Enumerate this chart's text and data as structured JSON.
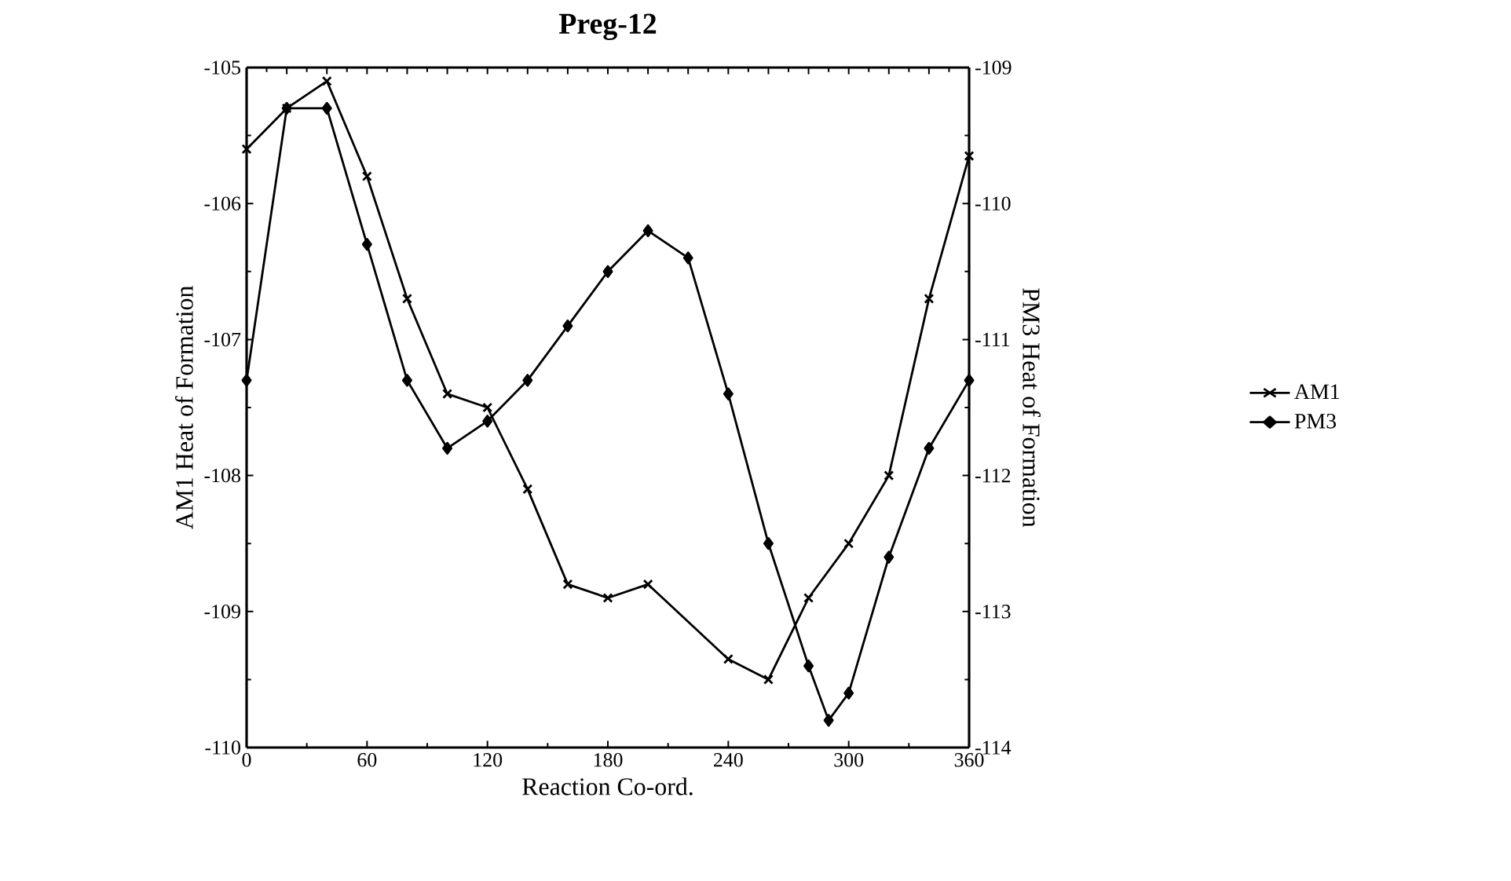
{
  "chart_data": {
    "type": "line",
    "title": "Preg-12",
    "xlabel": "Reaction Co-ord.",
    "ylabel": "AM1 Heat of Formation",
    "y2label": "PM3 Heat of Formation",
    "xlim": [
      0,
      360
    ],
    "xticks": [
      0,
      60,
      120,
      180,
      240,
      300,
      360
    ],
    "ylim": [
      -110,
      -105
    ],
    "yticks": [
      -110,
      -109,
      -108,
      -107,
      -106,
      -105
    ],
    "y2lim": [
      -114,
      -109
    ],
    "y2ticks": [
      -114,
      -113,
      -112,
      -111,
      -110,
      -109
    ],
    "legend": "right",
    "grid": false,
    "line_style": "solid",
    "series": [
      {
        "name": "AM1",
        "color": "#000000",
        "marker": "cross",
        "x": [
          0,
          20,
          40,
          60,
          80,
          100,
          120,
          140,
          160,
          180,
          200,
          240,
          260,
          280,
          300,
          320,
          340,
          360
        ],
        "values": [
          -105.6,
          -105.3,
          -105.1,
          -105.8,
          -106.7,
          -107.4,
          -107.5,
          -108.1,
          -108.8,
          -108.9,
          -108.8,
          -109.35,
          -109.5,
          -108.9,
          -108.5,
          -108.0,
          -106.7,
          -105.65
        ]
      },
      {
        "name": "PM3",
        "color": "#000000",
        "marker": "diamond",
        "axis": "y2",
        "x": [
          0,
          20,
          40,
          60,
          80,
          100,
          120,
          140,
          160,
          180,
          200,
          220,
          240,
          260,
          280,
          290,
          300,
          320,
          340,
          360
        ],
        "values": [
          -111.3,
          -109.3,
          -109.3,
          -110.3,
          -111.3,
          -111.8,
          -111.6,
          -111.3,
          -110.9,
          -110.5,
          -110.2,
          -110.4,
          -111.4,
          -112.5,
          -113.4,
          -113.8,
          -113.6,
          -112.6,
          -111.8,
          -111.3
        ]
      }
    ]
  }
}
